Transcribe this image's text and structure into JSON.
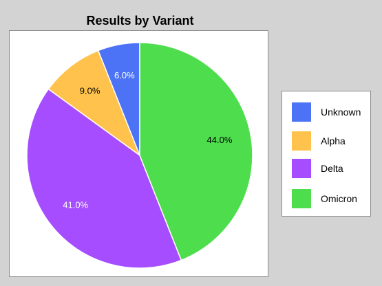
{
  "chart_data": {
    "type": "pie",
    "title": "Results by Variant",
    "slices": [
      {
        "label": "Unknown",
        "value": 6.0,
        "display": "6.0%",
        "color": "#4c72f5",
        "label_color": "#ffffff"
      },
      {
        "label": "Alpha",
        "value": 9.0,
        "display": "9.0%",
        "color": "#ffc34d",
        "label_color": "#000000"
      },
      {
        "label": "Delta",
        "value": 41.0,
        "display": "41.0%",
        "color": "#a64dff",
        "label_color": "#ffffff"
      },
      {
        "label": "Omicron",
        "value": 44.0,
        "display": "44.0%",
        "color": "#4ddd4d",
        "label_color": "#000000"
      }
    ],
    "legend": {
      "placement": "right",
      "order": [
        "Unknown",
        "Alpha",
        "Delta",
        "Omicron"
      ]
    },
    "start_angle_deg": 90,
    "direction": "counterclockwise"
  }
}
